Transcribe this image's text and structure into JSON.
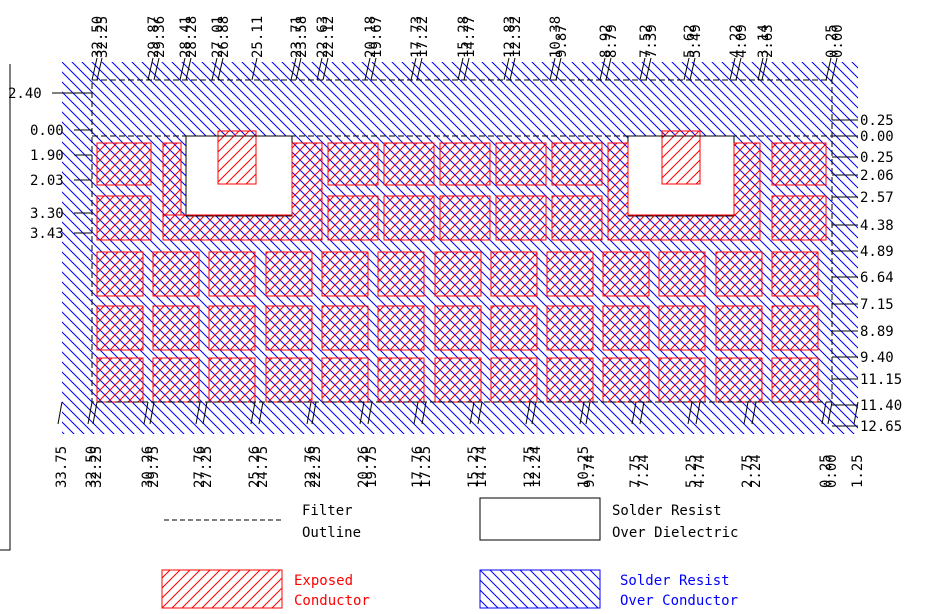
{
  "colors": {
    "conductor": "#ff0000",
    "resist": "#0000ff",
    "line": "#000000",
    "background": "#ffffff"
  },
  "top_labels": [
    "32.50",
    "32.25",
    "29.87",
    "29.36",
    "28.41",
    "28.28",
    "27.01",
    "26.88",
    "25.11",
    "23.71",
    "23.58",
    "22.63",
    "22.12",
    "20.18",
    "19.67",
    "17.73",
    "17.22",
    "15.28",
    "14.77",
    "12.83",
    "12.32",
    "10.38",
    "9.87",
    "8.92",
    "8.79",
    "7.52",
    "7.39",
    "5.62",
    "5.49",
    "4.22",
    "4.09",
    "3.14",
    "2.63",
    "0.25",
    "0.00"
  ],
  "bottom_labels": [
    "33.75",
    "32.50",
    "32.25",
    "30.26",
    "29.75",
    "27.76",
    "27.25",
    "25.26",
    "24.75",
    "22.76",
    "22.25",
    "20.26",
    "19.75",
    "17.76",
    "17.25",
    "15.25",
    "14.74",
    "12.75",
    "12.24",
    "10.25",
    "9.74",
    "7.75",
    "7.24",
    "5.25",
    "4.74",
    "2.75",
    "2.24",
    "0.25",
    "0.00",
    "1.25"
  ],
  "left_labels": [
    "2.40",
    "0.00",
    "1.90",
    "2.03",
    "3.30",
    "3.43"
  ],
  "right_labels": [
    "0.25",
    "0.00",
    "0.25",
    "2.06",
    "2.57",
    "4.38",
    "4.89",
    "6.64",
    "7.15",
    "8.89",
    "9.40",
    "11.15",
    "11.40",
    "12.65"
  ],
  "legend": {
    "filter_outline": [
      "Filter",
      "Outline"
    ],
    "solder_resist_over_dielectric": [
      "Solder Resist",
      "Over Dielectric"
    ],
    "exposed_conductor": [
      "Exposed",
      "Conductor"
    ],
    "solder_resist_over_conductor": [
      "Solder Resist",
      "Over Conductor"
    ]
  }
}
